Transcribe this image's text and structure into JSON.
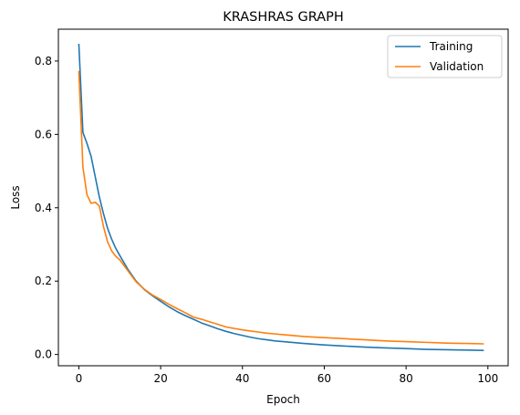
{
  "chart_data": {
    "type": "line",
    "title": "KRASHRAS GRAPH",
    "xlabel": "Epoch",
    "ylabel": "Loss",
    "xlim": [
      -5,
      104.95
    ],
    "ylim": [
      -0.0307,
      0.8868
    ],
    "xticks": [
      0,
      20,
      40,
      60,
      80,
      100
    ],
    "yticks": [
      0.0,
      0.2,
      0.4,
      0.6,
      0.8
    ],
    "xtick_labels": [
      "0",
      "20",
      "40",
      "60",
      "80",
      "100"
    ],
    "ytick_labels": [
      "0.0",
      "0.2",
      "0.4",
      "0.6",
      "0.8"
    ],
    "grid": false,
    "legend_position": "top-right",
    "series": [
      {
        "name": "Training",
        "color": "#1f77b4",
        "points": [
          [
            0,
            0.847
          ],
          [
            1,
            0.605
          ],
          [
            2,
            0.575
          ],
          [
            3,
            0.54
          ],
          [
            4,
            0.485
          ],
          [
            5,
            0.43
          ],
          [
            6,
            0.385
          ],
          [
            7,
            0.345
          ],
          [
            8,
            0.315
          ],
          [
            9,
            0.29
          ],
          [
            10,
            0.27
          ],
          [
            12,
            0.232
          ],
          [
            14,
            0.2
          ],
          [
            16,
            0.177
          ],
          [
            18,
            0.16
          ],
          [
            20,
            0.145
          ],
          [
            22,
            0.13
          ],
          [
            24,
            0.117
          ],
          [
            26,
            0.106
          ],
          [
            28,
            0.096
          ],
          [
            30,
            0.086
          ],
          [
            32,
            0.078
          ],
          [
            34,
            0.07
          ],
          [
            36,
            0.063
          ],
          [
            38,
            0.057
          ],
          [
            40,
            0.052
          ],
          [
            42,
            0.047
          ],
          [
            44,
            0.043
          ],
          [
            46,
            0.04
          ],
          [
            48,
            0.037
          ],
          [
            50,
            0.035
          ],
          [
            55,
            0.03
          ],
          [
            60,
            0.026
          ],
          [
            65,
            0.023
          ],
          [
            70,
            0.02
          ],
          [
            75,
            0.018
          ],
          [
            80,
            0.016
          ],
          [
            85,
            0.014
          ],
          [
            90,
            0.013
          ],
          [
            95,
            0.012
          ],
          [
            99,
            0.011
          ]
        ]
      },
      {
        "name": "Validation",
        "color": "#ff7f0e",
        "points": [
          [
            0,
            0.773
          ],
          [
            1,
            0.51
          ],
          [
            2,
            0.435
          ],
          [
            3,
            0.412
          ],
          [
            4,
            0.415
          ],
          [
            5,
            0.405
          ],
          [
            6,
            0.35
          ],
          [
            7,
            0.308
          ],
          [
            8,
            0.283
          ],
          [
            9,
            0.268
          ],
          [
            10,
            0.258
          ],
          [
            12,
            0.228
          ],
          [
            14,
            0.198
          ],
          [
            16,
            0.178
          ],
          [
            18,
            0.162
          ],
          [
            20,
            0.15
          ],
          [
            22,
            0.137
          ],
          [
            24,
            0.125
          ],
          [
            26,
            0.114
          ],
          [
            28,
            0.102
          ],
          [
            30,
            0.096
          ],
          [
            32,
            0.089
          ],
          [
            34,
            0.082
          ],
          [
            36,
            0.075
          ],
          [
            38,
            0.071
          ],
          [
            40,
            0.067
          ],
          [
            42,
            0.064
          ],
          [
            44,
            0.061
          ],
          [
            46,
            0.058
          ],
          [
            48,
            0.056
          ],
          [
            50,
            0.054
          ],
          [
            55,
            0.049
          ],
          [
            60,
            0.046
          ],
          [
            65,
            0.043
          ],
          [
            70,
            0.04
          ],
          [
            75,
            0.037
          ],
          [
            80,
            0.035
          ],
          [
            85,
            0.033
          ],
          [
            90,
            0.031
          ],
          [
            95,
            0.03
          ],
          [
            99,
            0.029
          ]
        ]
      }
    ]
  }
}
